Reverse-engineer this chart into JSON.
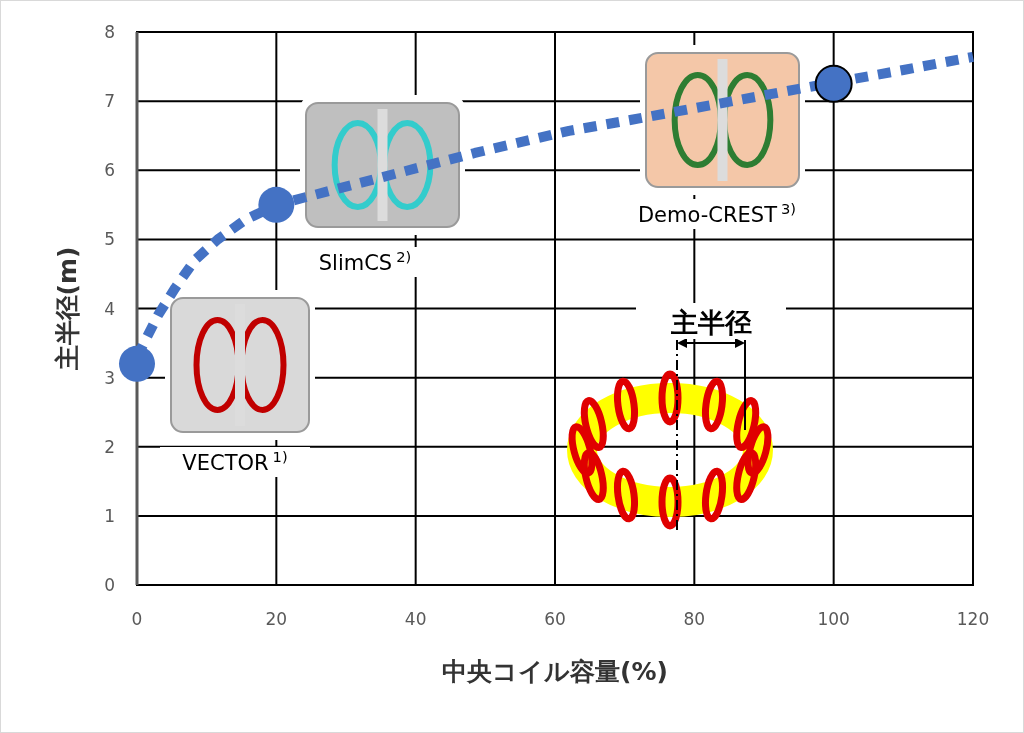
{
  "chart_data": {
    "type": "scatter",
    "xlabel": "中央コイル容量(%)",
    "ylabel": "主半径(m)",
    "xlim": [
      0,
      120
    ],
    "ylim": [
      0,
      8
    ],
    "xticks": [
      0,
      20,
      40,
      60,
      80,
      100,
      120
    ],
    "yticks": [
      0,
      1,
      2,
      3,
      4,
      5,
      6,
      7,
      8
    ],
    "grid": true,
    "series": [
      {
        "type": "line",
        "color": "#4472c4",
        "line_style": "dashed",
        "marker": "none",
        "x": [
          0,
          3,
          5.5,
          8.3,
          11.6,
          15.5,
          20,
          48.5,
          62,
          71,
          100,
          110,
          120
        ],
        "values": [
          3.3,
          3.9,
          4.3,
          4.7,
          5.0,
          5.28,
          5.5,
          6.25,
          6.57,
          6.73,
          7.27,
          7.45,
          7.64
        ]
      },
      {
        "color": "#4472c4",
        "marker": "circle",
        "x": [
          0,
          20,
          100
        ],
        "values": [
          3.2,
          5.5,
          7.25
        ]
      }
    ],
    "annotations": [
      "VECTOR$^{1)}$",
      "SlimCS$^{2)}$",
      "Demo-CREST$^{3)}$",
      "主半径"
    ]
  }
}
